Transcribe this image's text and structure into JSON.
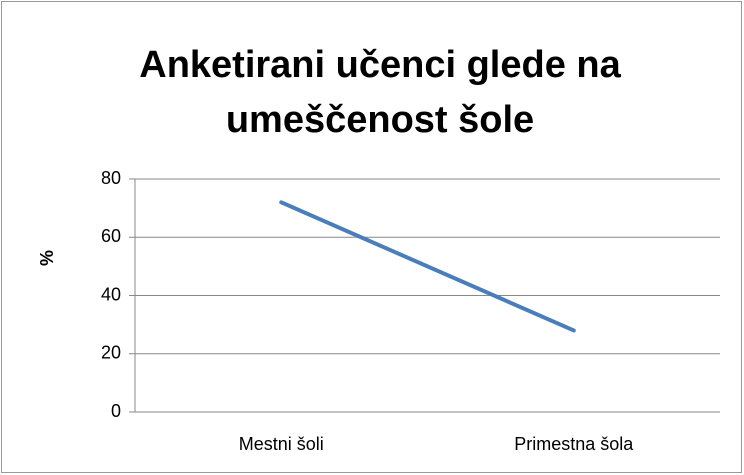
{
  "chart_data": {
    "type": "line",
    "title": "Anketirani učenci glede na umeščenost šole",
    "y_label": "%",
    "categories": [
      "Mestni šoli",
      "Primestna šola"
    ],
    "series": [
      {
        "name": "%",
        "color": "#4a7ebb",
        "values": [
          72,
          28
        ]
      }
    ],
    "ylim": [
      0,
      80
    ],
    "yticks": [
      0,
      20,
      40,
      60,
      80
    ],
    "grid": true
  }
}
